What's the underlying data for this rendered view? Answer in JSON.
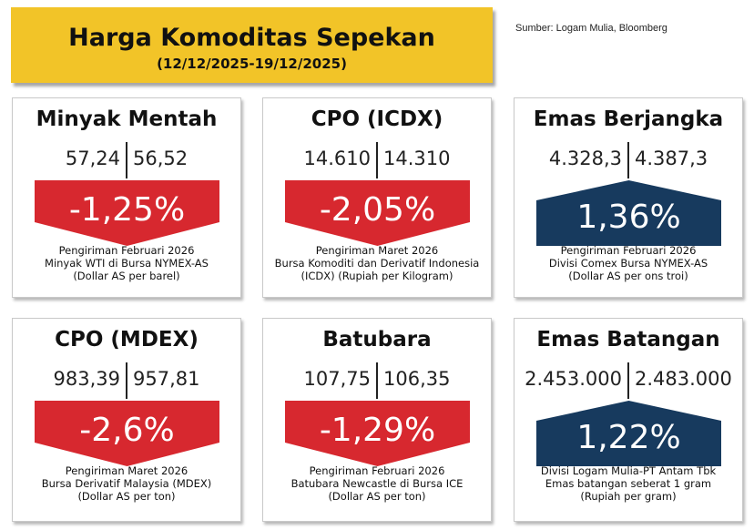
{
  "header": {
    "title": "Harga Komoditas Sepekan",
    "period": "(12/12/2025-19/12/2025)"
  },
  "source": "Sumber: Logam Mulia, Bloomberg",
  "colors": {
    "down": "#d7282f",
    "up": "#173a5e",
    "header_bg": "#f2c428"
  },
  "cards": [
    {
      "name": "Minyak Mentah",
      "value_prev": "57,24",
      "value_curr": "56,52",
      "change": "-1,25%",
      "direction": "down",
      "desc": [
        "Pengiriman Februari 2026",
        "Minyak WTI di Bursa NYMEX-AS",
        "(Dollar AS per barel)"
      ]
    },
    {
      "name": "CPO (ICDX)",
      "value_prev": "14.610",
      "value_curr": "14.310",
      "change": "-2,05%",
      "direction": "down",
      "desc": [
        "Pengiriman Maret 2026",
        "Bursa Komoditi dan Derivatif Indonesia",
        "(ICDX) (Rupiah per Kilogram)"
      ]
    },
    {
      "name": "Emas Berjangka",
      "value_prev": "4.328,3",
      "value_curr": "4.387,3",
      "change": "1,36%",
      "direction": "up",
      "desc": [
        "Pengiriman Februari 2026",
        "Divisi Comex Bursa NYMEX-AS",
        "(Dollar AS per ons troi)"
      ]
    },
    {
      "name": "CPO (MDEX)",
      "value_prev": "983,39",
      "value_curr": "957,81",
      "change": "-2,6%",
      "direction": "down",
      "desc": [
        "Pengiriman Maret 2026",
        "Bursa Derivatif Malaysia (MDEX)",
        "(Dollar AS per ton)"
      ]
    },
    {
      "name": "Batubara",
      "value_prev": "107,75",
      "value_curr": "106,35",
      "change": "-1,29%",
      "direction": "down",
      "desc": [
        "Pengiriman Februari 2026",
        "Batubara Newcastle di Bursa ICE",
        "(Dollar AS per ton)"
      ]
    },
    {
      "name": "Emas Batangan",
      "value_prev": "2.453.000",
      "value_curr": "2.483.000",
      "change": "1,22%",
      "direction": "up",
      "desc": [
        "Divisi Logam Mulia-PT Antam Tbk",
        "Emas batangan seberat 1 gram",
        "(Rupiah per gram)"
      ]
    }
  ]
}
